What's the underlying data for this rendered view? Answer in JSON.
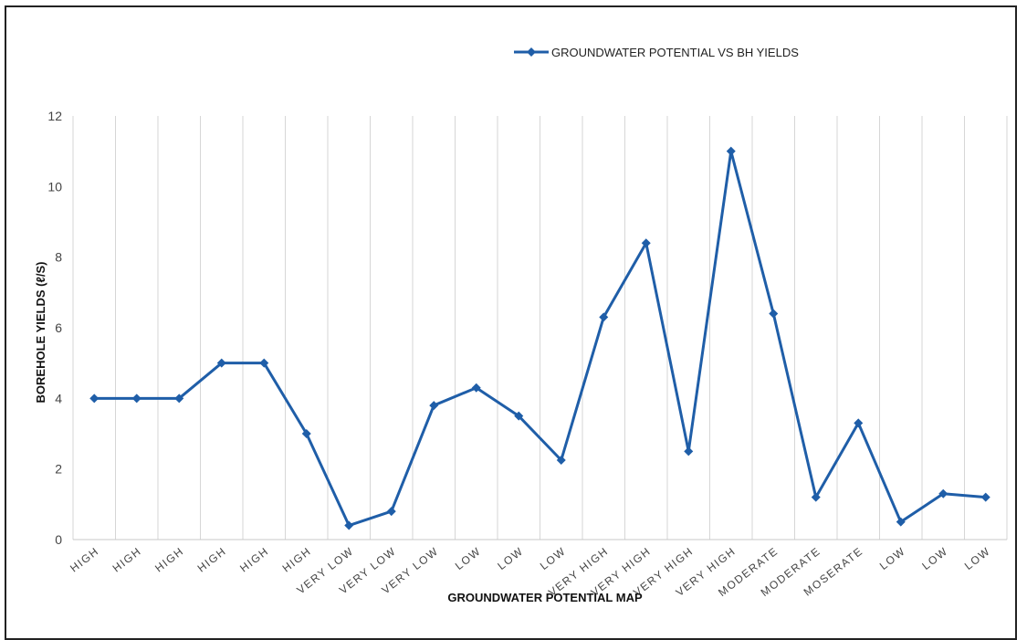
{
  "chart_data": {
    "type": "line",
    "title": "",
    "legend_position": "top",
    "xlabel": "GROUNDWATER POTENTIAL MAP",
    "ylabel": "BOREHOLE YIELDS (ℓ/S)",
    "ylim": [
      0,
      12
    ],
    "yticks": [
      0,
      2,
      4,
      6,
      8,
      10,
      12
    ],
    "grid": "vertical",
    "categories": [
      "HIGH",
      "HIGH",
      "HIGH",
      "HIGH",
      "HIGH",
      "HIGH",
      "VERY LOW",
      "VERY LOW",
      "VERY LOW",
      "LOW",
      "LOW",
      "LOW",
      "VERY HIGH",
      "VERY HIGH",
      "VERY HIGH",
      "VERY HIGH",
      "MODERATE",
      "MODERATE",
      "MOSERATE",
      "LOW",
      "LOW",
      "LOW"
    ],
    "series": [
      {
        "name": "GROUNDWATER POTENTIAL VS BH YIELDS",
        "color": "#1f5ea8",
        "marker": "diamond",
        "values": [
          4,
          4,
          4,
          5,
          5,
          3,
          0.4,
          0.8,
          3.8,
          4.3,
          3.5,
          2.25,
          6.3,
          8.4,
          2.5,
          11,
          6.4,
          1.2,
          3.3,
          0.5,
          1.3,
          1.2
        ]
      }
    ]
  }
}
